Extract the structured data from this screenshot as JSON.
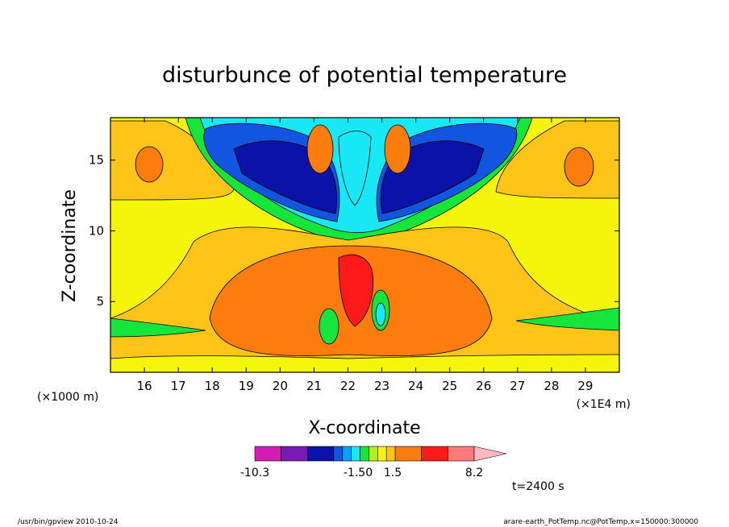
{
  "chart_data": {
    "type": "heatmap",
    "title": "disturbunce of potential temperature",
    "xlabel": "X-coordinate",
    "ylabel": "Z-coordinate",
    "x_unit_left": "(×1000 m)",
    "x_unit_right": "(×1E4 m)",
    "xticks": [
      16,
      17,
      18,
      19,
      20,
      21,
      22,
      23,
      24,
      25,
      26,
      27,
      28,
      29
    ],
    "yticks": [
      5,
      10,
      15
    ],
    "xlim": [
      15,
      30
    ],
    "ylim": [
      0,
      18
    ],
    "colorbar": {
      "colors": [
        "#d11db4",
        "#7a19b6",
        "#0a12a8",
        "#1155e0",
        "#0aa0ff",
        "#18e7f5",
        "#16e63c",
        "#b5ee1b",
        "#f5f50b",
        "#ffc418",
        "#fd7c0e",
        "#ff1a1a",
        "#ff7b7b",
        "#ffb8c4"
      ],
      "labels": [
        "-10.3",
        "-1.50",
        "1.5",
        "8.2"
      ]
    },
    "time_label": "t=2400 s"
  },
  "footer": {
    "left": "/usr/bin/gpview   2010-10-24",
    "right": "arare-earth_PotTemp.nc@PotTemp,x=150000:300000"
  }
}
